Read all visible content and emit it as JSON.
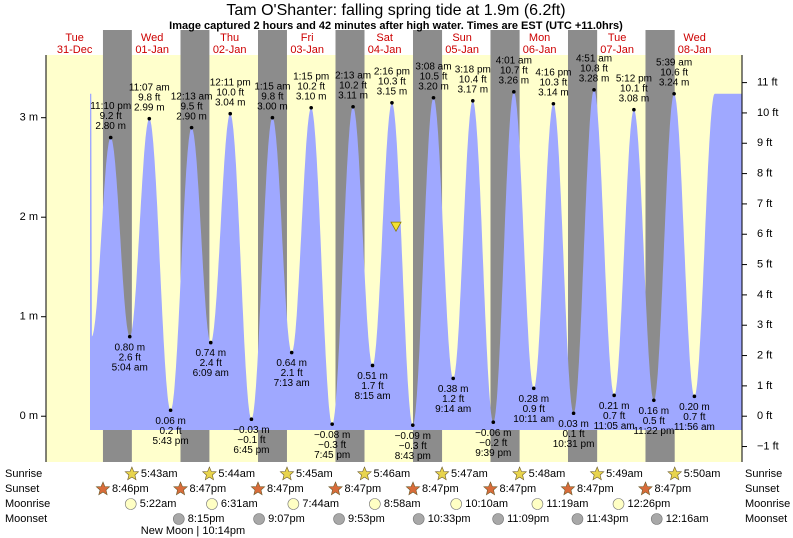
{
  "chart_data": {
    "type": "tide",
    "title": "Tam O'Shanter: falling  spring tide at 1.9m (6.2ft)",
    "subtitle": "Image captured 2 hours and 42 minutes after high water. Times are EST (UTC +11.0hrs)",
    "current_value": 1.9,
    "ylim": [
      -0.46,
      3.63
    ],
    "yticks": [
      {
        "value": 0,
        "label": "0 m"
      },
      {
        "value": 1,
        "label": "1 m"
      },
      {
        "value": 2,
        "label": "2 m"
      },
      {
        "value": 3,
        "label": "3 m"
      }
    ],
    "y2lim": [
      -1.51,
      11.91
    ],
    "y2ticks": [
      {
        "value": -1,
        "label": "−1 ft"
      },
      {
        "value": 0,
        "label": "0 ft"
      },
      {
        "value": 1,
        "label": "1 ft"
      },
      {
        "value": 2,
        "label": "2 ft"
      },
      {
        "value": 3,
        "label": "3 ft"
      },
      {
        "value": 4,
        "label": "4 ft"
      },
      {
        "value": 5,
        "label": "5 ft"
      },
      {
        "value": 6,
        "label": "6 ft"
      },
      {
        "value": 7,
        "label": "7 ft"
      },
      {
        "value": 8,
        "label": "8 ft"
      },
      {
        "value": 9,
        "label": "9 ft"
      },
      {
        "value": 10,
        "label": "10 ft"
      },
      {
        "value": 11,
        "label": "11 ft"
      }
    ],
    "row_labels": [
      "Sunrise",
      "Sunset",
      "Moonrise",
      "Moonset"
    ],
    "colors": {
      "area": "#9fa8ff",
      "day": "#ffffcc",
      "night": "#8c8c8c",
      "sunrise": "#e8d44d",
      "sunset": "#d86c3a",
      "moonrise": "#ffffc4",
      "moonset": "#a8a8a8",
      "marker": "#f2e033"
    },
    "days": [
      {
        "weekday": "Tue",
        "date": "31-Dec",
        "tides": [
          {
            "time": "11:10 pm",
            "value": 2.8,
            "value_label": "2.80 m",
            "ft_label": "9.2 ft"
          }
        ],
        "sunset": "8:46pm"
      },
      {
        "weekday": "Wed",
        "date": "01-Jan",
        "tides": [
          {
            "time": "5:04 am",
            "value": 0.8,
            "value_label": "0.80 m",
            "ft_label": "2.6 ft"
          },
          {
            "time": "11:07 am",
            "value": 2.99,
            "value_label": "2.99 m",
            "ft_label": "9.8 ft"
          },
          {
            "time": "5:43 pm",
            "value": 0.06,
            "value_label": "0.06 m",
            "ft_label": "0.2 ft"
          }
        ],
        "sunrise": "5:43am",
        "sunset": "8:47pm",
        "moonrise": "5:22am",
        "moonset": "8:15pm",
        "moon_phase": "New Moon | 10:14pm"
      },
      {
        "weekday": "Thu",
        "date": "02-Jan",
        "tides": [
          {
            "time": "12:13 am",
            "value": 2.9,
            "value_label": "2.90 m",
            "ft_label": "9.5 ft"
          },
          {
            "time": "6:09 am",
            "value": 0.74,
            "value_label": "0.74 m",
            "ft_label": "2.4 ft"
          },
          {
            "time": "12:11 pm",
            "value": 3.04,
            "value_label": "3.04 m",
            "ft_label": "10.0 ft"
          },
          {
            "time": "6:45 pm",
            "value": -0.03,
            "value_label": "−0.03 m",
            "ft_label": "−0.1 ft"
          }
        ],
        "sunrise": "5:44am",
        "sunset": "8:47pm",
        "moonrise": "6:31am",
        "moonset": "9:07pm"
      },
      {
        "weekday": "Fri",
        "date": "03-Jan",
        "tides": [
          {
            "time": "1:15 am",
            "value": 3.0,
            "value_label": "3.00 m",
            "ft_label": "9.8 ft"
          },
          {
            "time": "7:13 am",
            "value": 0.64,
            "value_label": "0.64 m",
            "ft_label": "2.1 ft"
          },
          {
            "time": "1:15 pm",
            "value": 3.1,
            "value_label": "3.10 m",
            "ft_label": "10.2 ft"
          },
          {
            "time": "7:45 pm",
            "value": -0.08,
            "value_label": "−0.08 m",
            "ft_label": "−0.3 ft"
          }
        ],
        "sunrise": "5:45am",
        "sunset": "8:47pm",
        "moonrise": "7:44am",
        "moonset": "9:53pm"
      },
      {
        "weekday": "Sat",
        "date": "04-Jan",
        "tides": [
          {
            "time": "2:13 am",
            "value": 3.11,
            "value_label": "3.11 m",
            "ft_label": "10.2 ft"
          },
          {
            "time": "8:15 am",
            "value": 0.51,
            "value_label": "0.51 m",
            "ft_label": "1.7 ft"
          },
          {
            "time": "2:16 pm",
            "value": 3.15,
            "value_label": "3.15 m",
            "ft_label": "10.3 ft"
          },
          {
            "time": "8:43 pm",
            "value": -0.09,
            "value_label": "−0.09 m",
            "ft_label": "−0.3 ft"
          }
        ],
        "sunrise": "5:46am",
        "sunset": "8:47pm",
        "moonrise": "8:58am",
        "moonset": "10:33pm"
      },
      {
        "weekday": "Sun",
        "date": "05-Jan",
        "tides": [
          {
            "time": "3:08 am",
            "value": 3.2,
            "value_label": "3.20 m",
            "ft_label": "10.5 ft"
          },
          {
            "time": "9:14 am",
            "value": 0.38,
            "value_label": "0.38 m",
            "ft_label": "1.2 ft"
          },
          {
            "time": "3:18 pm",
            "value": 3.17,
            "value_label": "3.17 m",
            "ft_label": "10.4 ft"
          },
          {
            "time": "9:39 pm",
            "value": -0.06,
            "value_label": "−0.06 m",
            "ft_label": "−0.2 ft"
          }
        ],
        "sunrise": "5:47am",
        "sunset": "8:47pm",
        "moonrise": "10:10am",
        "moonset": "11:09pm"
      },
      {
        "weekday": "Mon",
        "date": "06-Jan",
        "tides": [
          {
            "time": "4:01 am",
            "value": 3.26,
            "value_label": "3.26 m",
            "ft_label": "10.7 ft"
          },
          {
            "time": "10:11 am",
            "value": 0.28,
            "value_label": "0.28 m",
            "ft_label": "0.9 ft"
          },
          {
            "time": "4:16 pm",
            "value": 3.14,
            "value_label": "3.14 m",
            "ft_label": "10.3 ft"
          },
          {
            "time": "10:31 pm",
            "value": 0.03,
            "value_label": "0.03 m",
            "ft_label": "0.1 ft"
          }
        ],
        "sunrise": "5:48am",
        "sunset": "8:47pm",
        "moonrise": "11:19am",
        "moonset": "11:43pm"
      },
      {
        "weekday": "Tue",
        "date": "07-Jan",
        "tides": [
          {
            "time": "4:51 am",
            "value": 3.28,
            "value_label": "3.28 m",
            "ft_label": "10.8 ft"
          },
          {
            "time": "11:05 am",
            "value": 0.21,
            "value_label": "0.21 m",
            "ft_label": "0.7 ft"
          },
          {
            "time": "5:12 pm",
            "value": 3.08,
            "value_label": "3.08 m",
            "ft_label": "10.1 ft"
          },
          {
            "time": "11:22 pm",
            "value": 0.16,
            "value_label": "0.16 m",
            "ft_label": "0.5 ft"
          }
        ],
        "sunrise": "5:49am",
        "sunset": "8:47pm",
        "moonrise": "12:26pm"
      },
      {
        "weekday": "Wed",
        "date": "08-Jan",
        "tides": [
          {
            "time": "5:39 am",
            "value": 3.24,
            "value_label": "3.24 m",
            "ft_label": "10.6 ft"
          },
          {
            "time": "11:56 am",
            "value": 0.2,
            "value_label": "0.20 m",
            "ft_label": "0.7 ft"
          }
        ],
        "sunrise": "5:50am",
        "moonset": "12:16am"
      }
    ]
  }
}
